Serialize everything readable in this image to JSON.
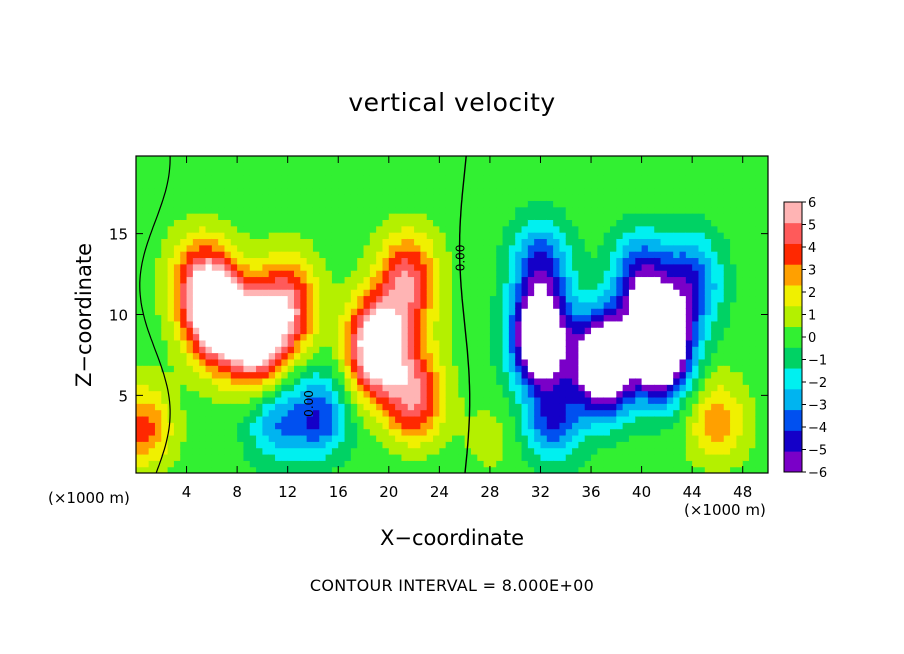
{
  "chart_data": {
    "type": "heatmap",
    "title": "vertical velocity",
    "xlabel": "X−coordinate",
    "ylabel": "Z−coordinate",
    "x_unit_labels": [
      "(×1000 m)",
      "(×1000 m)"
    ],
    "footer": "CONTOUR INTERVAL = 8.000E+00",
    "xlim": [
      0,
      50
    ],
    "ylim": [
      0.2,
      19.8
    ],
    "x_ticks": [
      4,
      8,
      12,
      16,
      20,
      24,
      28,
      32,
      36,
      40,
      44,
      48
    ],
    "y_ticks": [
      5,
      10,
      15
    ],
    "colorbar": {
      "min": -6,
      "max": 6,
      "ticks": [
        "6",
        "5",
        "4",
        "3",
        "2",
        "1",
        "0",
        "−1",
        "−2",
        "−3",
        "−4",
        "−5",
        "−6"
      ],
      "colors": [
        "#7a00c8",
        "#1400c8",
        "#0050f0",
        "#00b4f0",
        "#00f0f0",
        "#00d264",
        "#32f032",
        "#b4f000",
        "#f0f000",
        "#ffa000",
        "#ff2800",
        "#ff5a5a",
        "#ffb4b4"
      ],
      "over_color": "#ffffff"
    },
    "contour_labels": [
      "0.00",
      "0.00"
    ],
    "features": [
      {
        "name": "updraft",
        "x": 6.5,
        "z": 10,
        "amp": 8
      },
      {
        "name": "updraft",
        "x": 9.5,
        "z": 8.5,
        "amp": 7
      },
      {
        "name": "updraft",
        "x": 12,
        "z": 10.5,
        "amp": 5
      },
      {
        "name": "updraft",
        "x": 5,
        "z": 12,
        "amp": 4
      },
      {
        "name": "updraft",
        "x": 19,
        "z": 8,
        "amp": 8
      },
      {
        "name": "updraft",
        "x": 21.5,
        "z": 12,
        "amp": 5
      },
      {
        "name": "updraft",
        "x": 22,
        "z": 5,
        "amp": 5
      },
      {
        "name": "updraft",
        "x": 0.5,
        "z": 2.5,
        "amp": 4
      },
      {
        "name": "downdraft",
        "x": 32,
        "z": 8.5,
        "amp": -9
      },
      {
        "name": "downdraft",
        "x": 37,
        "z": 7,
        "amp": -10
      },
      {
        "name": "downdraft",
        "x": 41.5,
        "z": 8,
        "amp": -11
      },
      {
        "name": "downdraft",
        "x": 40,
        "z": 12,
        "amp": -5
      },
      {
        "name": "downdraft",
        "x": 32,
        "z": 13,
        "amp": -4
      },
      {
        "name": "downdraft",
        "x": 44,
        "z": 12,
        "amp": -4
      },
      {
        "name": "downdraft",
        "x": 14.5,
        "z": 3.5,
        "amp": -4
      },
      {
        "name": "downdraft",
        "x": 11,
        "z": 3,
        "amp": -3
      },
      {
        "name": "downdraft",
        "x": 33,
        "z": 3,
        "amp": -4
      },
      {
        "name": "updraft",
        "x": 28,
        "z": 1.5,
        "amp": 1
      },
      {
        "name": "updraft",
        "x": 46,
        "z": 3,
        "amp": 3
      }
    ]
  }
}
